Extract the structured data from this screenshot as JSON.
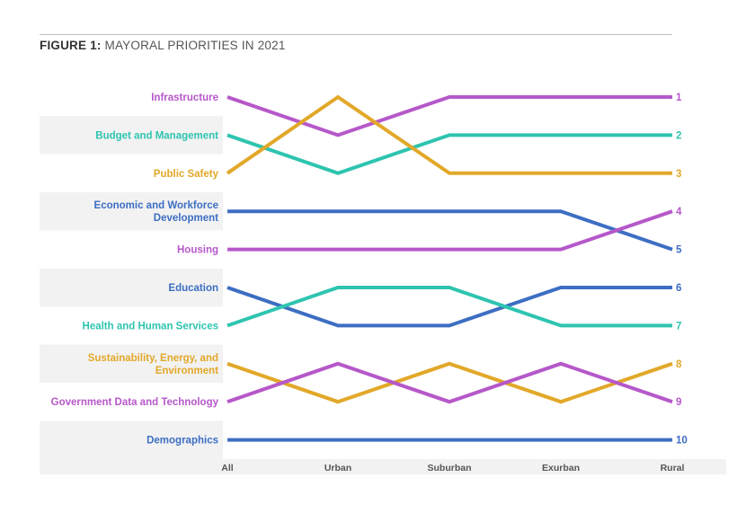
{
  "figure": {
    "label": "FIGURE 1:",
    "title": "MAYORAL PRIORITIES IN 2021"
  },
  "colors": {
    "purple": "#b658c9",
    "teal": "#2ec4b0",
    "orange": "#e2a829",
    "blue": "#3d6ec3",
    "band": "#f2f2f2",
    "rule": "#bdbdbd"
  },
  "chart_data": {
    "type": "line",
    "chart_kind": "bump chart (rank by community type)",
    "x": [
      "All",
      "Urban",
      "Suburban",
      "Exurban",
      "Rural"
    ],
    "y_axis": "rank (1 at top, 10 at bottom)",
    "ylim": [
      1,
      10
    ],
    "row_bands": "alternating shaded rows",
    "series": [
      {
        "name": "Infrastructure",
        "color": "#b658c9",
        "ranks": [
          1,
          2,
          1,
          1,
          1
        ]
      },
      {
        "name": "Budget and Management",
        "color": "#2ec4b0",
        "ranks": [
          2,
          3,
          2,
          2,
          2
        ]
      },
      {
        "name": "Public Safety",
        "color": "#e2a829",
        "ranks": [
          3,
          1,
          3,
          3,
          3
        ]
      },
      {
        "name": "Economic and Workforce Development",
        "color": "#3d6ec3",
        "ranks": [
          4,
          4,
          4,
          4,
          5
        ]
      },
      {
        "name": "Housing",
        "color": "#b658c9",
        "ranks": [
          5,
          5,
          5,
          5,
          4
        ]
      },
      {
        "name": "Education",
        "color": "#3d6ec3",
        "ranks": [
          6,
          7,
          7,
          6,
          6
        ]
      },
      {
        "name": "Health and Human Services",
        "color": "#2ec4b0",
        "ranks": [
          7,
          6,
          6,
          7,
          7
        ]
      },
      {
        "name": "Sustainability, Energy, and Environment",
        "color": "#e2a829",
        "ranks": [
          8,
          9,
          8,
          9,
          8
        ]
      },
      {
        "name": "Government Data and Technology",
        "color": "#b658c9",
        "ranks": [
          9,
          8,
          9,
          8,
          9
        ]
      },
      {
        "name": "Demographics",
        "color": "#3d6ec3",
        "ranks": [
          10,
          10,
          10,
          10,
          10
        ]
      }
    ],
    "row_labels": [
      [
        "Infrastructure"
      ],
      [
        "Budget and Management"
      ],
      [
        "Public Safety"
      ],
      [
        "Economic and Workforce",
        "Development"
      ],
      [
        "Housing"
      ],
      [
        "Education"
      ],
      [
        "Health and Human Services"
      ],
      [
        "Sustainability, Energy, and",
        "Environment"
      ],
      [
        "Government Data and Technology"
      ],
      [
        "Demographics"
      ]
    ],
    "rank_labels": [
      "1",
      "2",
      "3",
      "4",
      "5",
      "6",
      "7",
      "8",
      "9",
      "10"
    ]
  }
}
